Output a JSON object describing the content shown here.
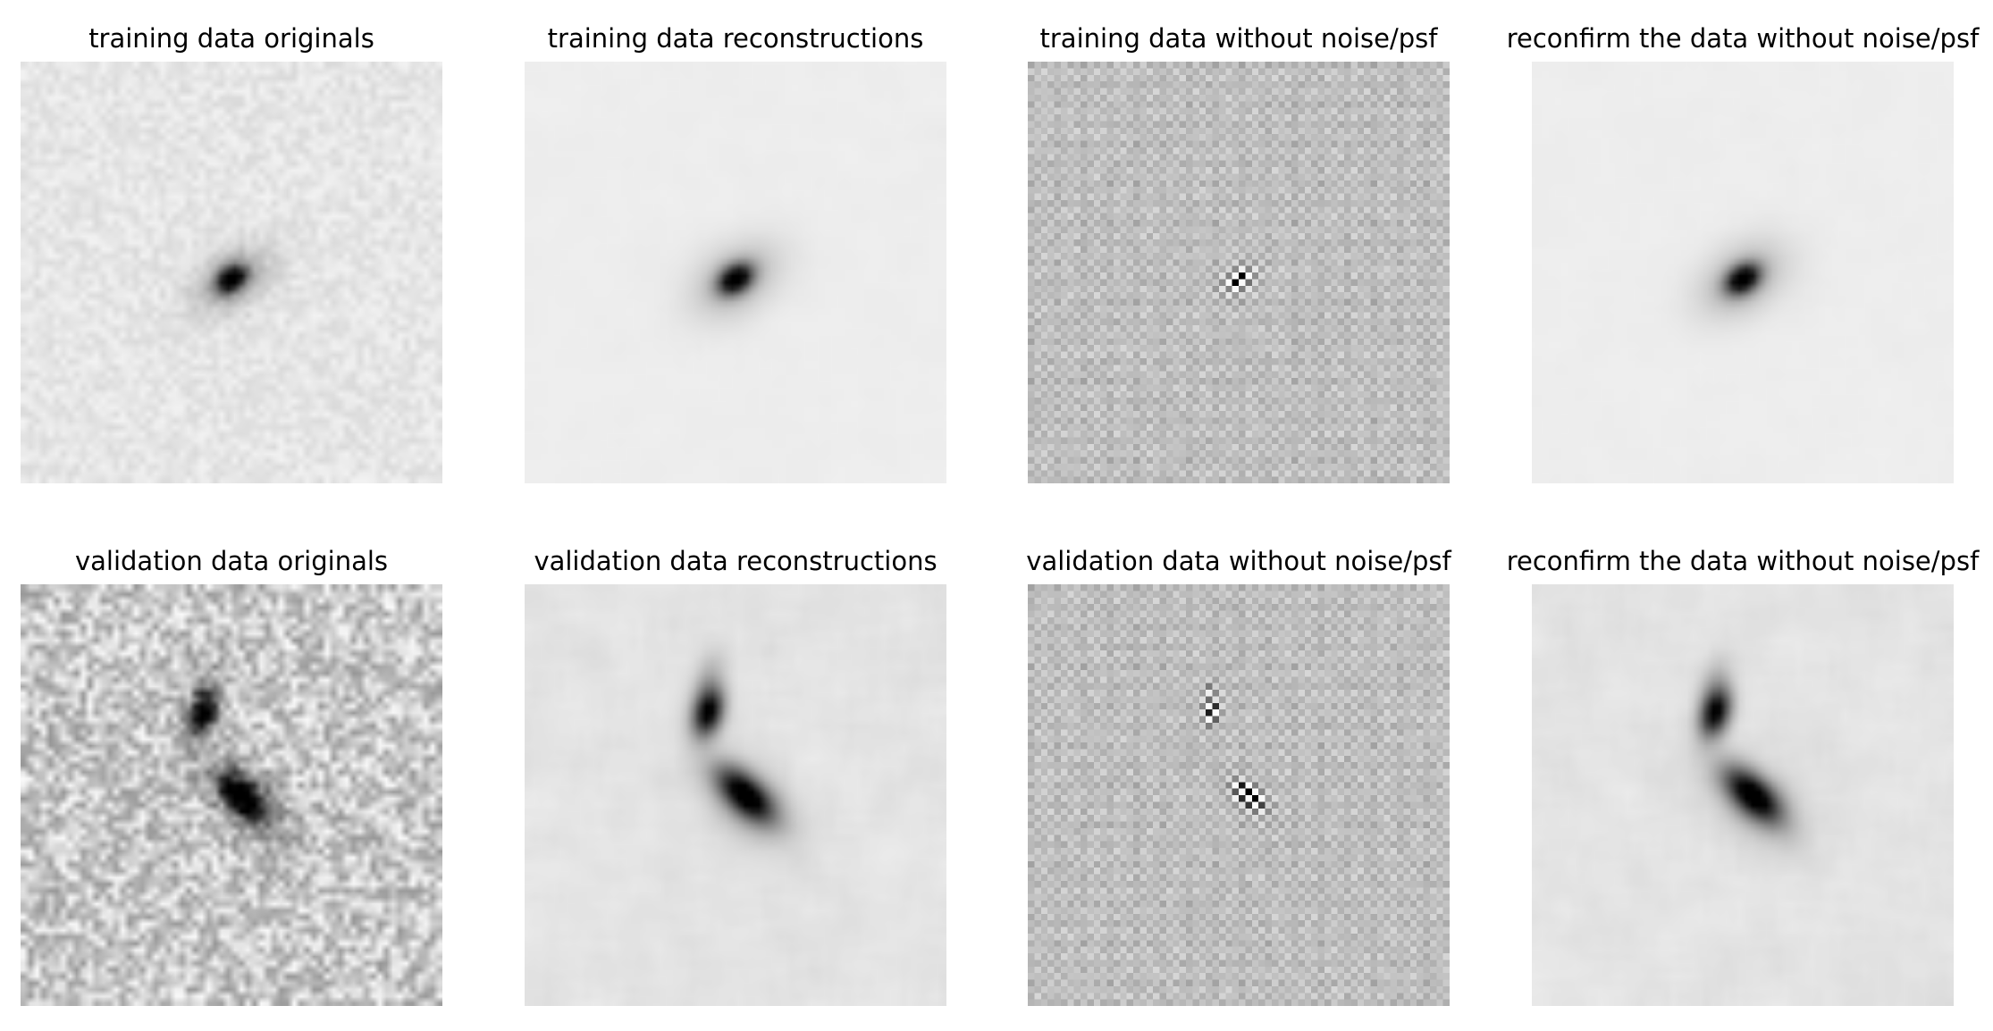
{
  "figure": {
    "rows": [
      {
        "panels": [
          {
            "title": "training data originals",
            "kind": "original",
            "source": "single"
          },
          {
            "title": "training data reconstructions",
            "kind": "recon",
            "source": "single"
          },
          {
            "title": "training data without noise/psf",
            "kind": "residual",
            "source": "single"
          },
          {
            "title": "reconfirm the data without noise/psf",
            "kind": "recon",
            "source": "single"
          }
        ]
      },
      {
        "panels": [
          {
            "title": "validation data originals",
            "kind": "original",
            "source": "double"
          },
          {
            "title": "validation data reconstructions",
            "kind": "recon",
            "source": "double"
          },
          {
            "title": "validation data without noise/psf",
            "kind": "residual",
            "source": "double"
          },
          {
            "title": "reconfirm the data without noise/psf",
            "kind": "recon",
            "source": "double"
          }
        ]
      }
    ]
  }
}
